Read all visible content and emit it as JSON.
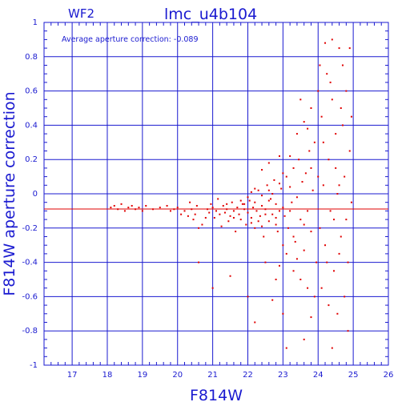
{
  "chart_data": {
    "type": "scatter",
    "panel_label": "WF2",
    "title": "lmc_u4b104",
    "annotation": "Average aperture correction: -0.089",
    "xlabel": "F814W",
    "ylabel": "F814W aperture correction",
    "xlim": [
      16.2,
      26
    ],
    "ylim": [
      -1,
      1
    ],
    "x_ticks": [
      "17",
      "18",
      "19",
      "20",
      "21",
      "22",
      "23",
      "24",
      "25",
      "26"
    ],
    "y_ticks": [
      "-1",
      "-0.8",
      "-0.6",
      "-0.4",
      "-0.2",
      "0",
      "0.2",
      "0.4",
      "0.6",
      "0.8",
      "1"
    ],
    "grid": true,
    "reference_line": {
      "y": -0.089,
      "color": "#e00000"
    },
    "colors": {
      "axes": "#1a1ad0",
      "points": "#e00000",
      "background": "#ffffff"
    },
    "series": [
      {
        "values": [
          [
            18.1,
            -0.08
          ],
          [
            18.2,
            -0.07
          ],
          [
            18.3,
            -0.09
          ],
          [
            18.4,
            -0.06
          ],
          [
            18.5,
            -0.1
          ],
          [
            18.6,
            -0.08
          ],
          [
            18.7,
            -0.07
          ],
          [
            18.8,
            -0.09
          ],
          [
            18.9,
            -0.08
          ],
          [
            19.0,
            -0.1
          ],
          [
            19.1,
            -0.07
          ],
          [
            19.3,
            -0.09
          ],
          [
            19.5,
            -0.08
          ],
          [
            19.7,
            -0.07
          ],
          [
            19.8,
            -0.1
          ],
          [
            19.9,
            -0.09
          ],
          [
            20.0,
            -0.08
          ],
          [
            20.1,
            -0.12
          ],
          [
            20.2,
            -0.1
          ],
          [
            20.3,
            -0.13
          ],
          [
            20.35,
            -0.05
          ],
          [
            20.4,
            -0.09
          ],
          [
            20.45,
            -0.15
          ],
          [
            20.5,
            -0.12
          ],
          [
            20.55,
            -0.07
          ],
          [
            20.6,
            -0.2
          ],
          [
            20.7,
            -0.18
          ],
          [
            20.8,
            -0.14
          ],
          [
            20.85,
            -0.09
          ],
          [
            20.9,
            -0.11
          ],
          [
            20.95,
            -0.06
          ],
          [
            21.0,
            -0.08
          ],
          [
            21.05,
            -0.14
          ],
          [
            21.1,
            -0.1
          ],
          [
            21.15,
            -0.03
          ],
          [
            21.2,
            -0.12
          ],
          [
            21.25,
            -0.19
          ],
          [
            21.3,
            -0.07
          ],
          [
            21.35,
            -0.11
          ],
          [
            21.4,
            -0.09
          ],
          [
            21.45,
            -0.16
          ],
          [
            21.5,
            -0.13
          ],
          [
            21.55,
            -0.05
          ],
          [
            21.6,
            -0.1
          ],
          [
            21.65,
            -0.22
          ],
          [
            21.7,
            -0.08
          ],
          [
            21.75,
            -0.12
          ],
          [
            21.8,
            -0.15
          ],
          [
            21.85,
            -0.06
          ],
          [
            21.9,
            -0.09
          ],
          [
            21.95,
            -0.18
          ],
          [
            22.0,
            -0.11
          ],
          [
            22.05,
            -0.04
          ],
          [
            22.1,
            -0.14
          ],
          [
            22.15,
            -0.08
          ],
          [
            22.2,
            -0.2
          ],
          [
            22.25,
            -0.1
          ],
          [
            22.3,
            0.02
          ],
          [
            22.35,
            -0.13
          ],
          [
            22.4,
            -0.07
          ],
          [
            22.45,
            -0.25
          ],
          [
            22.5,
            -0.09
          ],
          [
            22.55,
            0.05
          ],
          [
            22.6,
            -0.16
          ],
          [
            22.65,
            -0.03
          ],
          [
            22.7,
            -0.12
          ],
          [
            22.75,
            0.08
          ],
          [
            22.8,
            -0.06
          ],
          [
            22.85,
            -0.22
          ],
          [
            22.9,
            -0.1
          ],
          [
            22.95,
            0.03
          ],
          [
            21.9,
            -0.06
          ],
          [
            22.0,
            -0.02
          ],
          [
            22.1,
            0.01
          ],
          [
            22.2,
            -0.05
          ],
          [
            22.3,
            -0.16
          ],
          [
            22.4,
            -0.01
          ],
          [
            22.5,
            -0.12
          ],
          [
            22.6,
            -0.04
          ],
          [
            22.7,
            0.0
          ],
          [
            22.8,
            -0.14
          ],
          [
            22.9,
            0.06
          ],
          [
            23.0,
            -0.08
          ],
          [
            22.1,
            -0.17
          ],
          [
            22.2,
            0.03
          ],
          [
            22.4,
            -0.19
          ],
          [
            22.6,
            0.02
          ],
          [
            22.8,
            -0.18
          ],
          [
            21.8,
            -0.04
          ],
          [
            21.6,
            -0.14
          ],
          [
            21.4,
            -0.06
          ],
          [
            23.05,
            -0.13
          ],
          [
            23.1,
            0.1
          ],
          [
            23.15,
            -0.2
          ],
          [
            23.2,
            0.04
          ],
          [
            23.25,
            -0.05
          ],
          [
            23.3,
            0.15
          ],
          [
            23.35,
            -0.28
          ],
          [
            23.4,
            -0.02
          ],
          [
            23.45,
            0.2
          ],
          [
            23.5,
            -0.15
          ],
          [
            23.55,
            0.07
          ],
          [
            23.6,
            -0.33
          ],
          [
            23.65,
            0.12
          ],
          [
            23.7,
            -0.1
          ],
          [
            23.75,
            0.25
          ],
          [
            23.8,
            -0.22
          ],
          [
            23.85,
            0.02
          ],
          [
            23.9,
            0.3
          ],
          [
            23.95,
            -0.4
          ],
          [
            24.0,
            0.1
          ],
          [
            23.1,
            -0.35
          ],
          [
            23.2,
            0.22
          ],
          [
            23.3,
            -0.45
          ],
          [
            23.4,
            0.35
          ],
          [
            23.5,
            -0.5
          ],
          [
            23.6,
            0.42
          ],
          [
            23.7,
            -0.55
          ],
          [
            23.8,
            0.5
          ],
          [
            23.9,
            -0.6
          ],
          [
            24.0,
            0.6
          ],
          [
            23.5,
            0.55
          ],
          [
            23.7,
            0.38
          ],
          [
            23.3,
            -0.25
          ],
          [
            23.6,
            -0.18
          ],
          [
            23.8,
            0.15
          ],
          [
            23.4,
            -0.38
          ],
          [
            23.2,
            -0.1
          ],
          [
            23.0,
            0.12
          ],
          [
            23.0,
            -0.3
          ],
          [
            22.9,
            -0.42
          ],
          [
            24.05,
            -0.2
          ],
          [
            24.1,
            0.45
          ],
          [
            24.15,
            0.05
          ],
          [
            24.2,
            -0.3
          ],
          [
            24.25,
            0.7
          ],
          [
            24.3,
            0.2
          ],
          [
            24.35,
            -0.1
          ],
          [
            24.4,
            0.55
          ],
          [
            24.45,
            -0.45
          ],
          [
            24.5,
            0.35
          ],
          [
            24.55,
            0.0
          ],
          [
            24.6,
            0.85
          ],
          [
            24.65,
            -0.25
          ],
          [
            24.7,
            0.4
          ],
          [
            24.75,
            -0.6
          ],
          [
            24.8,
            0.6
          ],
          [
            24.85,
            -0.8
          ],
          [
            24.9,
            0.25
          ],
          [
            24.95,
            -0.05
          ],
          [
            24.2,
            0.88
          ],
          [
            24.3,
            -0.65
          ],
          [
            24.4,
            -0.9
          ],
          [
            24.5,
            0.15
          ],
          [
            24.6,
            -0.35
          ],
          [
            24.7,
            0.75
          ],
          [
            24.8,
            -0.15
          ],
          [
            24.9,
            0.85
          ],
          [
            24.1,
            -0.55
          ],
          [
            24.35,
            0.65
          ],
          [
            24.55,
            -0.7
          ],
          [
            24.75,
            0.1
          ],
          [
            24.15,
            0.3
          ],
          [
            24.45,
            -0.15
          ],
          [
            24.65,
            0.5
          ],
          [
            24.25,
            -0.4
          ],
          [
            24.05,
            0.75
          ],
          [
            24.85,
            -0.4
          ],
          [
            24.95,
            0.45
          ],
          [
            24.6,
            0.05
          ],
          [
            24.4,
            0.9
          ],
          [
            21.0,
            -0.55
          ],
          [
            20.6,
            -0.4
          ],
          [
            21.5,
            -0.48
          ],
          [
            22.0,
            -0.6
          ],
          [
            22.2,
            -0.75
          ],
          [
            22.5,
            -0.4
          ],
          [
            22.8,
            -0.5
          ],
          [
            23.0,
            -0.7
          ],
          [
            23.1,
            -0.9
          ],
          [
            23.6,
            -0.85
          ],
          [
            23.8,
            -0.72
          ],
          [
            22.7,
            -0.62
          ],
          [
            22.9,
            0.22
          ],
          [
            22.6,
            0.18
          ],
          [
            22.4,
            0.14
          ]
        ]
      }
    ]
  }
}
